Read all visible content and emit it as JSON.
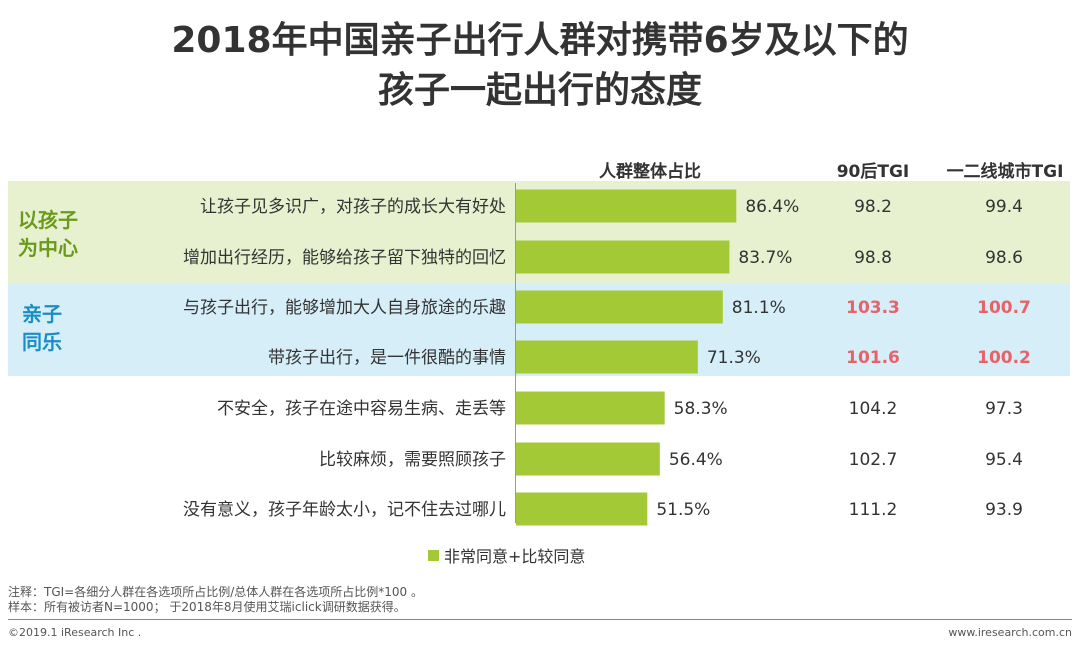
{
  "title_line1": "2018年中国亲子出行人群对携带6岁及以下的",
  "title_line2": "孩子一起出行的态度",
  "headers": {
    "share": "人群整体占比",
    "tgi_90s": "90后TGI",
    "tgi_city": "一二线城市TGI"
  },
  "groups": [
    {
      "label_line1": "以孩子",
      "label_line2": "为中心",
      "color": "#6a9a1a",
      "band_color": "#e7f1cf"
    },
    {
      "label_line1": "亲子",
      "label_line2": "同乐",
      "color": "#1a8dc4",
      "band_color": "#d6eef8"
    }
  ],
  "legend": "非常同意+比较同意",
  "highlight_color": "#e8626a",
  "bar_color": "#a4c937",
  "notes": {
    "line1": "注释：TGI=各细分人群在各选项所占比例/总体人群在各选项所占比例*100 。",
    "line2": "样本：所有被访者N=1000； 于2018年8月使用艾瑞iclick调研数据获得。"
  },
  "footer": {
    "copyright": "©2019.1 iResearch Inc .",
    "website": "www.iresearch.com.cn"
  },
  "chart_data": {
    "type": "bar",
    "orientation": "horizontal",
    "categories": [
      "让孩子见多识广，对孩子的成长大有好处",
      "增加出行经历，能够给孩子留下独特的回忆",
      "与孩子出行，能够增加大人自身旅途的乐趣",
      "带孩子出行，是一件很酷的事情",
      "不安全，孩子在途中容易生病、走丢等",
      "比较麻烦，需要照顾孩子",
      "没有意义，孩子年龄太小，记不住去过哪儿"
    ],
    "series": [
      {
        "name": "非常同意+比较同意",
        "values": [
          86.4,
          83.7,
          81.1,
          71.3,
          58.3,
          56.4,
          51.5
        ],
        "labels": [
          "86.4%",
          "83.7%",
          "81.1%",
          "71.3%",
          "58.3%",
          "56.4%",
          "51.5%"
        ]
      }
    ],
    "tgi_90s": [
      "98.2",
      "98.8",
      "103.3",
      "101.6",
      "104.2",
      "102.7",
      "111.2"
    ],
    "tgi_city": [
      "99.4",
      "98.6",
      "100.7",
      "100.2",
      "97.3",
      "95.4",
      "93.9"
    ],
    "highlighted_rows": [
      2,
      3
    ],
    "xlim": [
      0,
      100
    ],
    "legend_position": "bottom"
  }
}
